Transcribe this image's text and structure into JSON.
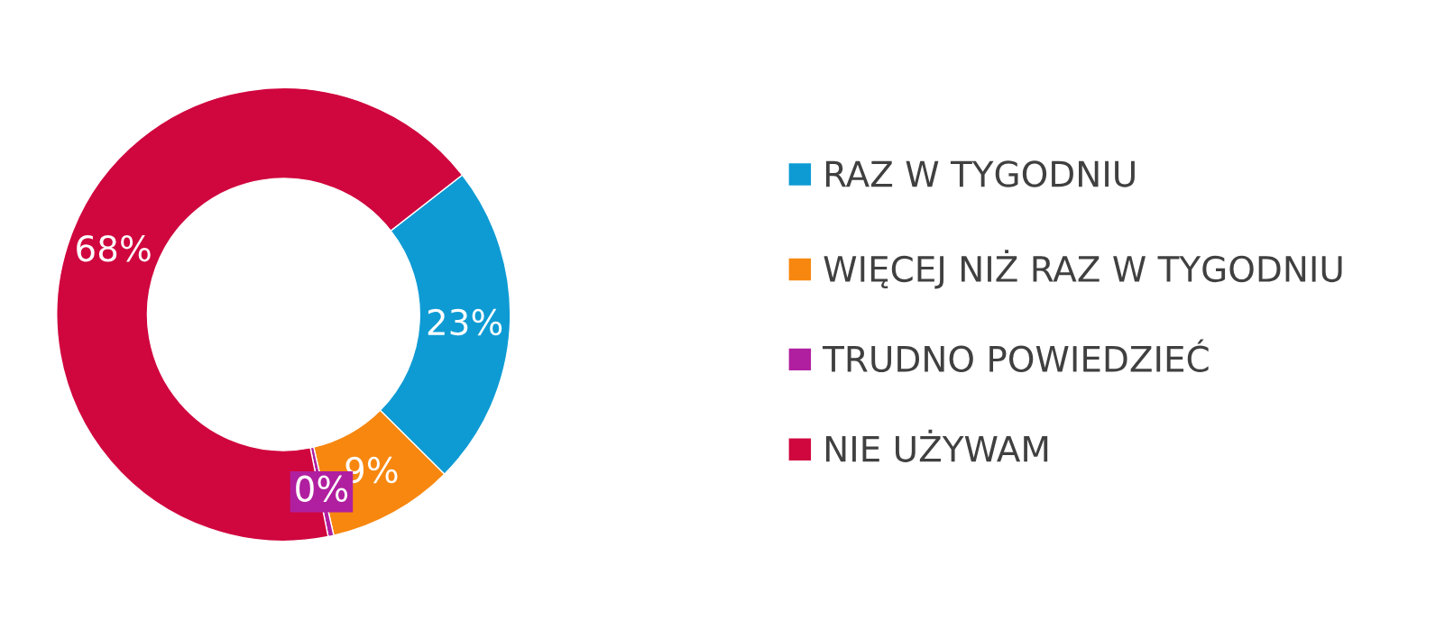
{
  "chart_data": {
    "type": "donut",
    "categories": [
      "RAZ W TYGODNIU",
      "WIĘCEJ NIŻ RAZ W TYGODNIU",
      "TRUDNO POWIEDZIEĆ",
      "NIE UŻYWAM"
    ],
    "values": [
      23,
      9,
      0.4,
      67.6
    ],
    "value_labels": [
      "23%",
      "9%",
      "0%",
      "68%"
    ],
    "colors": [
      "#0e9bd4",
      "#f7870f",
      "#b01f9f",
      "#d0063e"
    ],
    "legend": "right"
  }
}
